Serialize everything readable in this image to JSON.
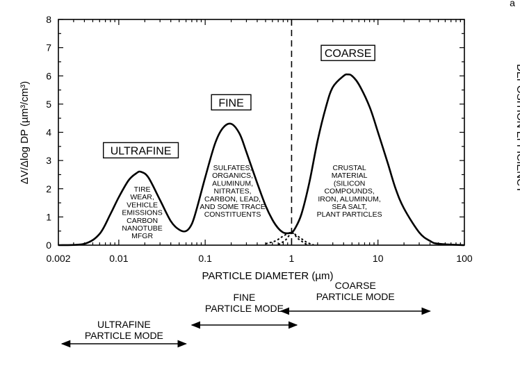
{
  "chart_data": {
    "type": "line",
    "title": "",
    "xlabel": "PARTICLE DIAMETER (µm)",
    "ylabel": "ΔV/Δlog DP (µm³/cm³)",
    "xscale": "log",
    "xlim": [
      0.002,
      100
    ],
    "ylim": [
      0,
      8
    ],
    "xticks": [
      0.002,
      0.01,
      0.1,
      1,
      10,
      100
    ],
    "xtick_labels": [
      "0.002",
      "0.01",
      "0.1",
      "1",
      "10",
      "100"
    ],
    "yticks": [
      0,
      1,
      2,
      3,
      4,
      5,
      6,
      7,
      8
    ],
    "ytick_labels": [
      "0",
      "1",
      "2",
      "3",
      "4",
      "5",
      "6",
      "7",
      "8"
    ],
    "grid": false,
    "series": [
      {
        "style": "solid",
        "x": [
          0.002,
          0.004,
          0.006,
          0.008,
          0.01,
          0.013,
          0.016,
          0.018,
          0.022,
          0.03,
          0.04,
          0.05,
          0.06,
          0.07,
          0.08,
          0.1,
          0.13,
          0.16,
          0.2,
          0.25,
          0.3,
          0.4,
          0.5,
          0.6,
          0.7,
          0.8,
          0.9,
          1.0,
          1.1,
          1.3,
          1.6,
          2.0,
          2.5,
          3.0,
          4.0,
          4.5,
          5.0,
          6.0,
          8.0,
          10,
          13,
          16,
          20,
          30,
          40,
          50,
          100
        ],
        "y": [
          0,
          0.05,
          0.4,
          1.1,
          1.7,
          2.3,
          2.55,
          2.6,
          2.4,
          1.6,
          0.85,
          0.55,
          0.5,
          0.75,
          1.3,
          2.4,
          3.6,
          4.15,
          4.3,
          3.95,
          3.3,
          2.2,
          1.4,
          0.9,
          0.6,
          0.45,
          0.42,
          0.45,
          0.6,
          1.1,
          2.2,
          3.7,
          4.9,
          5.6,
          6.0,
          6.05,
          6.0,
          5.7,
          4.9,
          4.0,
          2.9,
          2.0,
          1.3,
          0.45,
          0.15,
          0.05,
          0
        ]
      },
      {
        "style": "dotted",
        "x": [
          0.5,
          0.65,
          0.8,
          1.0,
          1.2,
          1.5
        ],
        "y": [
          0.05,
          0.15,
          0.32,
          0.45,
          0.22,
          0.02
        ]
      },
      {
        "style": "dotted",
        "x": [
          0.7,
          0.85,
          1.0,
          1.2,
          1.5,
          1.8
        ],
        "y": [
          0.02,
          0.18,
          0.42,
          0.3,
          0.1,
          0.01
        ]
      }
    ],
    "reference_lines": [
      {
        "axis": "x",
        "value": 1,
        "style": "dashed"
      }
    ],
    "mode_boxes": [
      {
        "label": "ULTRAFINE",
        "x": 0.018,
        "y": 2.6
      },
      {
        "label": "FINE",
        "x": 0.2,
        "y": 4.3
      },
      {
        "label": "COARSE",
        "x": 4.5,
        "y": 6.05
      }
    ],
    "annotations": [
      {
        "lines": [
          "TIRE",
          "WEAR,",
          "VEHICLE",
          "EMISSIONS",
          "CARBON",
          "NANOTUBE",
          "MFGR"
        ],
        "x": 0.018
      },
      {
        "lines": [
          "SULFATES,",
          "ORGANICS,",
          "ALUMINUM,",
          "NITRATES,",
          "CARBON, LEAD,",
          "AND SOME TRACE",
          "CONSTITUENTS"
        ],
        "x": 0.2
      },
      {
        "lines": [
          "CRUSTAL",
          "MATERIAL",
          "(SILICON",
          "COMPOUNDS,",
          "IRON, ALUMINUM,",
          "SEA SALT,",
          "PLANT PARTICLES"
        ],
        "x": 4.5
      }
    ],
    "mode_ranges": [
      {
        "lines": [
          "COARSE",
          "PARTICLE MODE"
        ],
        "range": [
          0.75,
          40
        ]
      },
      {
        "lines": [
          "FINE",
          "PARTICLE MODE"
        ],
        "range": [
          0.07,
          1.15
        ]
      },
      {
        "lines": [
          "ULTRAFINE",
          "PARTICLE MODE"
        ],
        "range": [
          0.0022,
          0.06
        ]
      }
    ]
  },
  "right_edge_text": "DEPOSITION EFFICIENCY",
  "corner_text": "a"
}
